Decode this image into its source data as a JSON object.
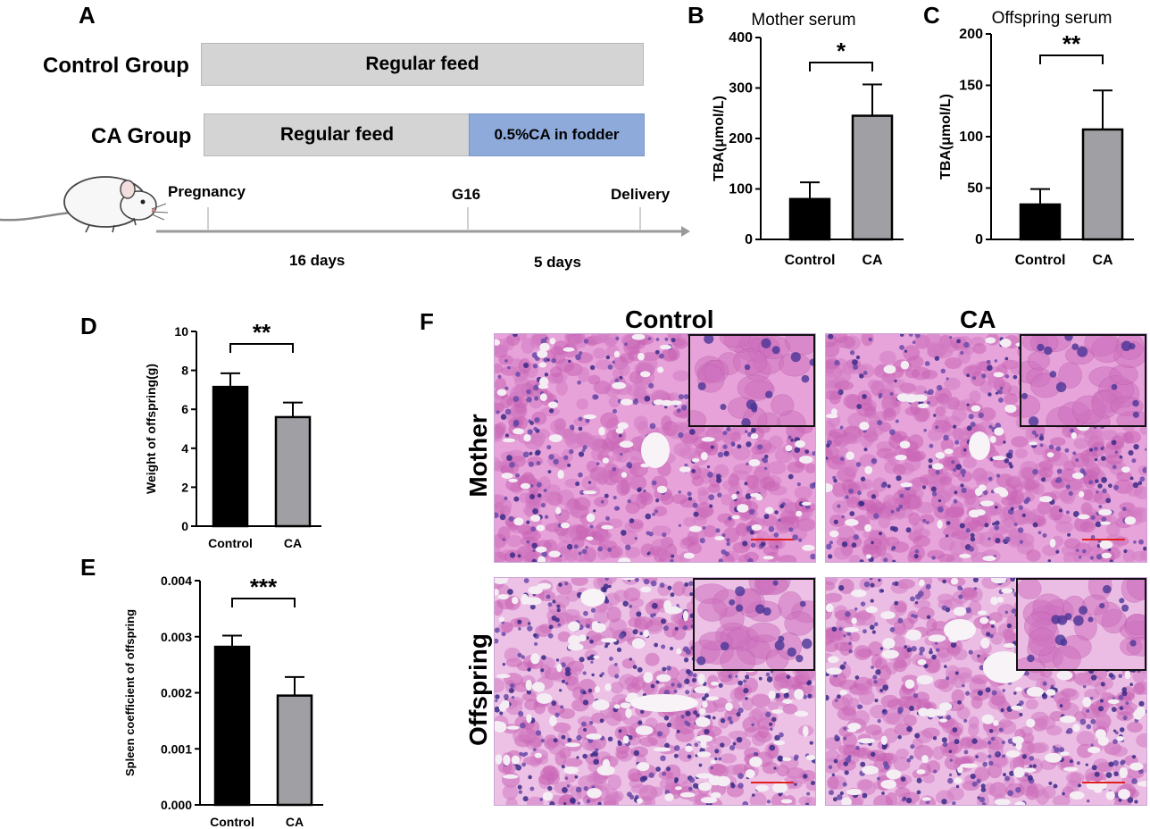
{
  "panels": {
    "A": "A",
    "B": "B",
    "C": "C",
    "D": "D",
    "E": "E",
    "F": "F"
  },
  "schematic": {
    "control_group": "Control Group",
    "control_bar": "Regular feed",
    "ca_group": "CA Group",
    "ca_bar_regular": "Regular feed",
    "ca_bar_treatment": "0.5%CA in fodder",
    "timeline": {
      "pregnancy": "Pregnancy",
      "g16": "G16",
      "delivery": "Delivery",
      "days_1": "16 days",
      "days_2": "5 days"
    },
    "colors": {
      "bar_gray": "#d4d4d4",
      "bar_blue": "#8eaadb"
    }
  },
  "chart_data": [
    {
      "panel": "B",
      "type": "bar",
      "title": "Mother serum",
      "ylabel": "TBA(μmol/L)",
      "categories": [
        "Control",
        "CA"
      ],
      "values": [
        80,
        245
      ],
      "errors": [
        33,
        62
      ],
      "ylim": [
        0,
        400
      ],
      "yticks": [
        "0",
        "100",
        "200",
        "300",
        "400"
      ],
      "significance": "*",
      "colors": [
        "#000000",
        "#a0a0a4"
      ]
    },
    {
      "panel": "C",
      "type": "bar",
      "title": "Offspring serum",
      "ylabel": "TBA(μmol/L)",
      "categories": [
        "Control",
        "CA"
      ],
      "values": [
        34,
        107
      ],
      "errors": [
        15,
        38
      ],
      "ylim": [
        0,
        200
      ],
      "yticks": [
        "0",
        "50",
        "100",
        "150",
        "200"
      ],
      "significance": "**",
      "colors": [
        "#000000",
        "#a0a0a4"
      ]
    },
    {
      "panel": "D",
      "type": "bar",
      "title": "",
      "ylabel": "Weight of offspring(g)",
      "categories": [
        "Control",
        "CA"
      ],
      "values": [
        7.15,
        5.6
      ],
      "errors": [
        0.7,
        0.75
      ],
      "ylim": [
        0,
        10
      ],
      "yticks": [
        "0",
        "2",
        "4",
        "6",
        "8",
        "10"
      ],
      "significance": "**",
      "colors": [
        "#000000",
        "#a0a0a4"
      ]
    },
    {
      "panel": "E",
      "type": "bar",
      "title": "",
      "ylabel": "Spleen coefficient of offspring",
      "categories": [
        "Control",
        "CA"
      ],
      "values": [
        0.00282,
        0.00195
      ],
      "errors": [
        0.0002,
        0.00033
      ],
      "ylim": [
        0,
        0.004
      ],
      "yticks": [
        "0.000",
        "0.001",
        "0.002",
        "0.003",
        "0.004"
      ],
      "significance": "***",
      "colors": [
        "#000000",
        "#a0a0a4"
      ]
    }
  ],
  "histology": {
    "col_control": "Control",
    "col_ca": "CA",
    "row_mother": "Mother",
    "row_offspring": "Offspring"
  }
}
